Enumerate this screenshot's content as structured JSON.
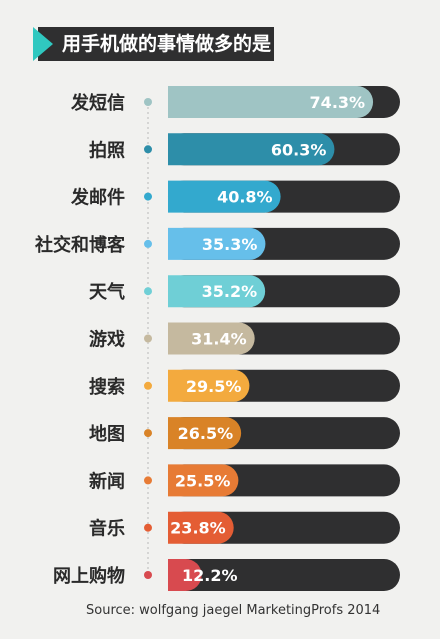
{
  "title": "用手机做的事情做多的是",
  "source": "Source: wolfgang jaegel MarketingProfs 2014",
  "colors": {
    "background": "#f1f1ef",
    "track": "#2f2f30",
    "title_box": "#2f2f30",
    "title_accent": "#30c8c0"
  },
  "chart_data": {
    "type": "bar",
    "orientation": "horizontal",
    "title": "用手机做的事情做多的是",
    "categories": [
      "发短信",
      "拍照",
      "发邮件",
      "社交和博客",
      "天气",
      "游戏",
      "搜索",
      "地图",
      "新闻",
      "音乐",
      "网上购物"
    ],
    "values": [
      74.3,
      60.3,
      40.8,
      35.3,
      35.2,
      31.4,
      29.5,
      26.5,
      25.5,
      23.8,
      12.2
    ],
    "labels": [
      "74.3%",
      "60.3%",
      "40.8%",
      "35.3%",
      "35.2%",
      "31.4%",
      "29.5%",
      "26.5%",
      "25.5%",
      "23.8%",
      "12.2%"
    ],
    "colors": [
      "#9fc4c4",
      "#2d8ea9",
      "#33a9ce",
      "#66bfea",
      "#6fcfd6",
      "#c5b99f",
      "#f3aa3e",
      "#d98327",
      "#e77b35",
      "#e45d34",
      "#d84a4f"
    ],
    "xlim": [
      0,
      100
    ],
    "unit": "%",
    "grid": false,
    "legend": "none"
  }
}
